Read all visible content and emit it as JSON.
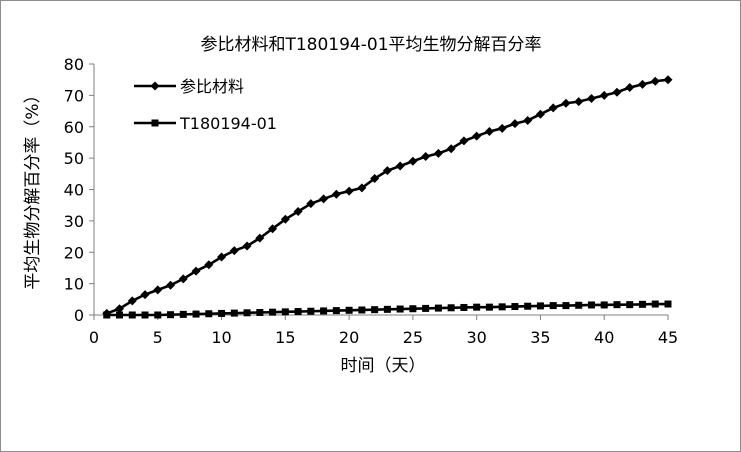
{
  "chart_data": {
    "type": "line",
    "title": "参比材料和T180194-01平均生物分解百分率",
    "xlabel": "时间（天）",
    "ylabel": "平均生物分解百分率（%）",
    "xlim": [
      0,
      45
    ],
    "ylim": [
      0,
      80
    ],
    "xticks": [
      0,
      5,
      10,
      15,
      20,
      25,
      30,
      35,
      40,
      45
    ],
    "yticks": [
      0,
      10,
      20,
      30,
      40,
      50,
      60,
      70,
      80
    ],
    "grid": false,
    "legend_position": "top-left",
    "series": [
      {
        "name": "参比材料",
        "marker": "diamond",
        "color": "#000000",
        "x": [
          1,
          2,
          3,
          4,
          5,
          6,
          7,
          8,
          9,
          10,
          11,
          12,
          13,
          14,
          15,
          16,
          17,
          18,
          19,
          20,
          21,
          22,
          23,
          24,
          25,
          26,
          27,
          28,
          29,
          30,
          31,
          32,
          33,
          34,
          35,
          36,
          37,
          38,
          39,
          40,
          41,
          42,
          43,
          44,
          45
        ],
        "values": [
          0.5,
          2,
          4.5,
          6.5,
          8,
          9.5,
          11.5,
          14,
          16,
          18.5,
          20.5,
          22,
          24.5,
          27.5,
          30.5,
          33,
          35.5,
          37,
          38.5,
          39.5,
          40.5,
          43.5,
          46,
          47.5,
          49,
          50.5,
          51.5,
          53,
          55.5,
          57,
          58.5,
          59.5,
          61,
          62,
          64,
          66,
          67.5,
          68,
          69,
          70,
          71,
          72.5,
          73.5,
          74.5,
          75
        ]
      },
      {
        "name": "T180194-01",
        "marker": "square",
        "color": "#000000",
        "x": [
          1,
          2,
          3,
          4,
          5,
          6,
          7,
          8,
          9,
          10,
          11,
          12,
          13,
          14,
          15,
          16,
          17,
          18,
          19,
          20,
          21,
          22,
          23,
          24,
          25,
          26,
          27,
          28,
          29,
          30,
          31,
          32,
          33,
          34,
          35,
          36,
          37,
          38,
          39,
          40,
          41,
          42,
          43,
          44,
          45
        ],
        "values": [
          0,
          0,
          0,
          0,
          0,
          0.1,
          0.2,
          0.3,
          0.4,
          0.5,
          0.6,
          0.7,
          0.8,
          0.9,
          1,
          1.1,
          1.2,
          1.3,
          1.4,
          1.5,
          1.6,
          1.7,
          1.8,
          1.9,
          2,
          2.1,
          2.2,
          2.3,
          2.4,
          2.5,
          2.5,
          2.6,
          2.7,
          2.8,
          2.9,
          3,
          3,
          3.1,
          3.2,
          3.2,
          3.3,
          3.3,
          3.4,
          3.5,
          3.5
        ]
      }
    ]
  }
}
